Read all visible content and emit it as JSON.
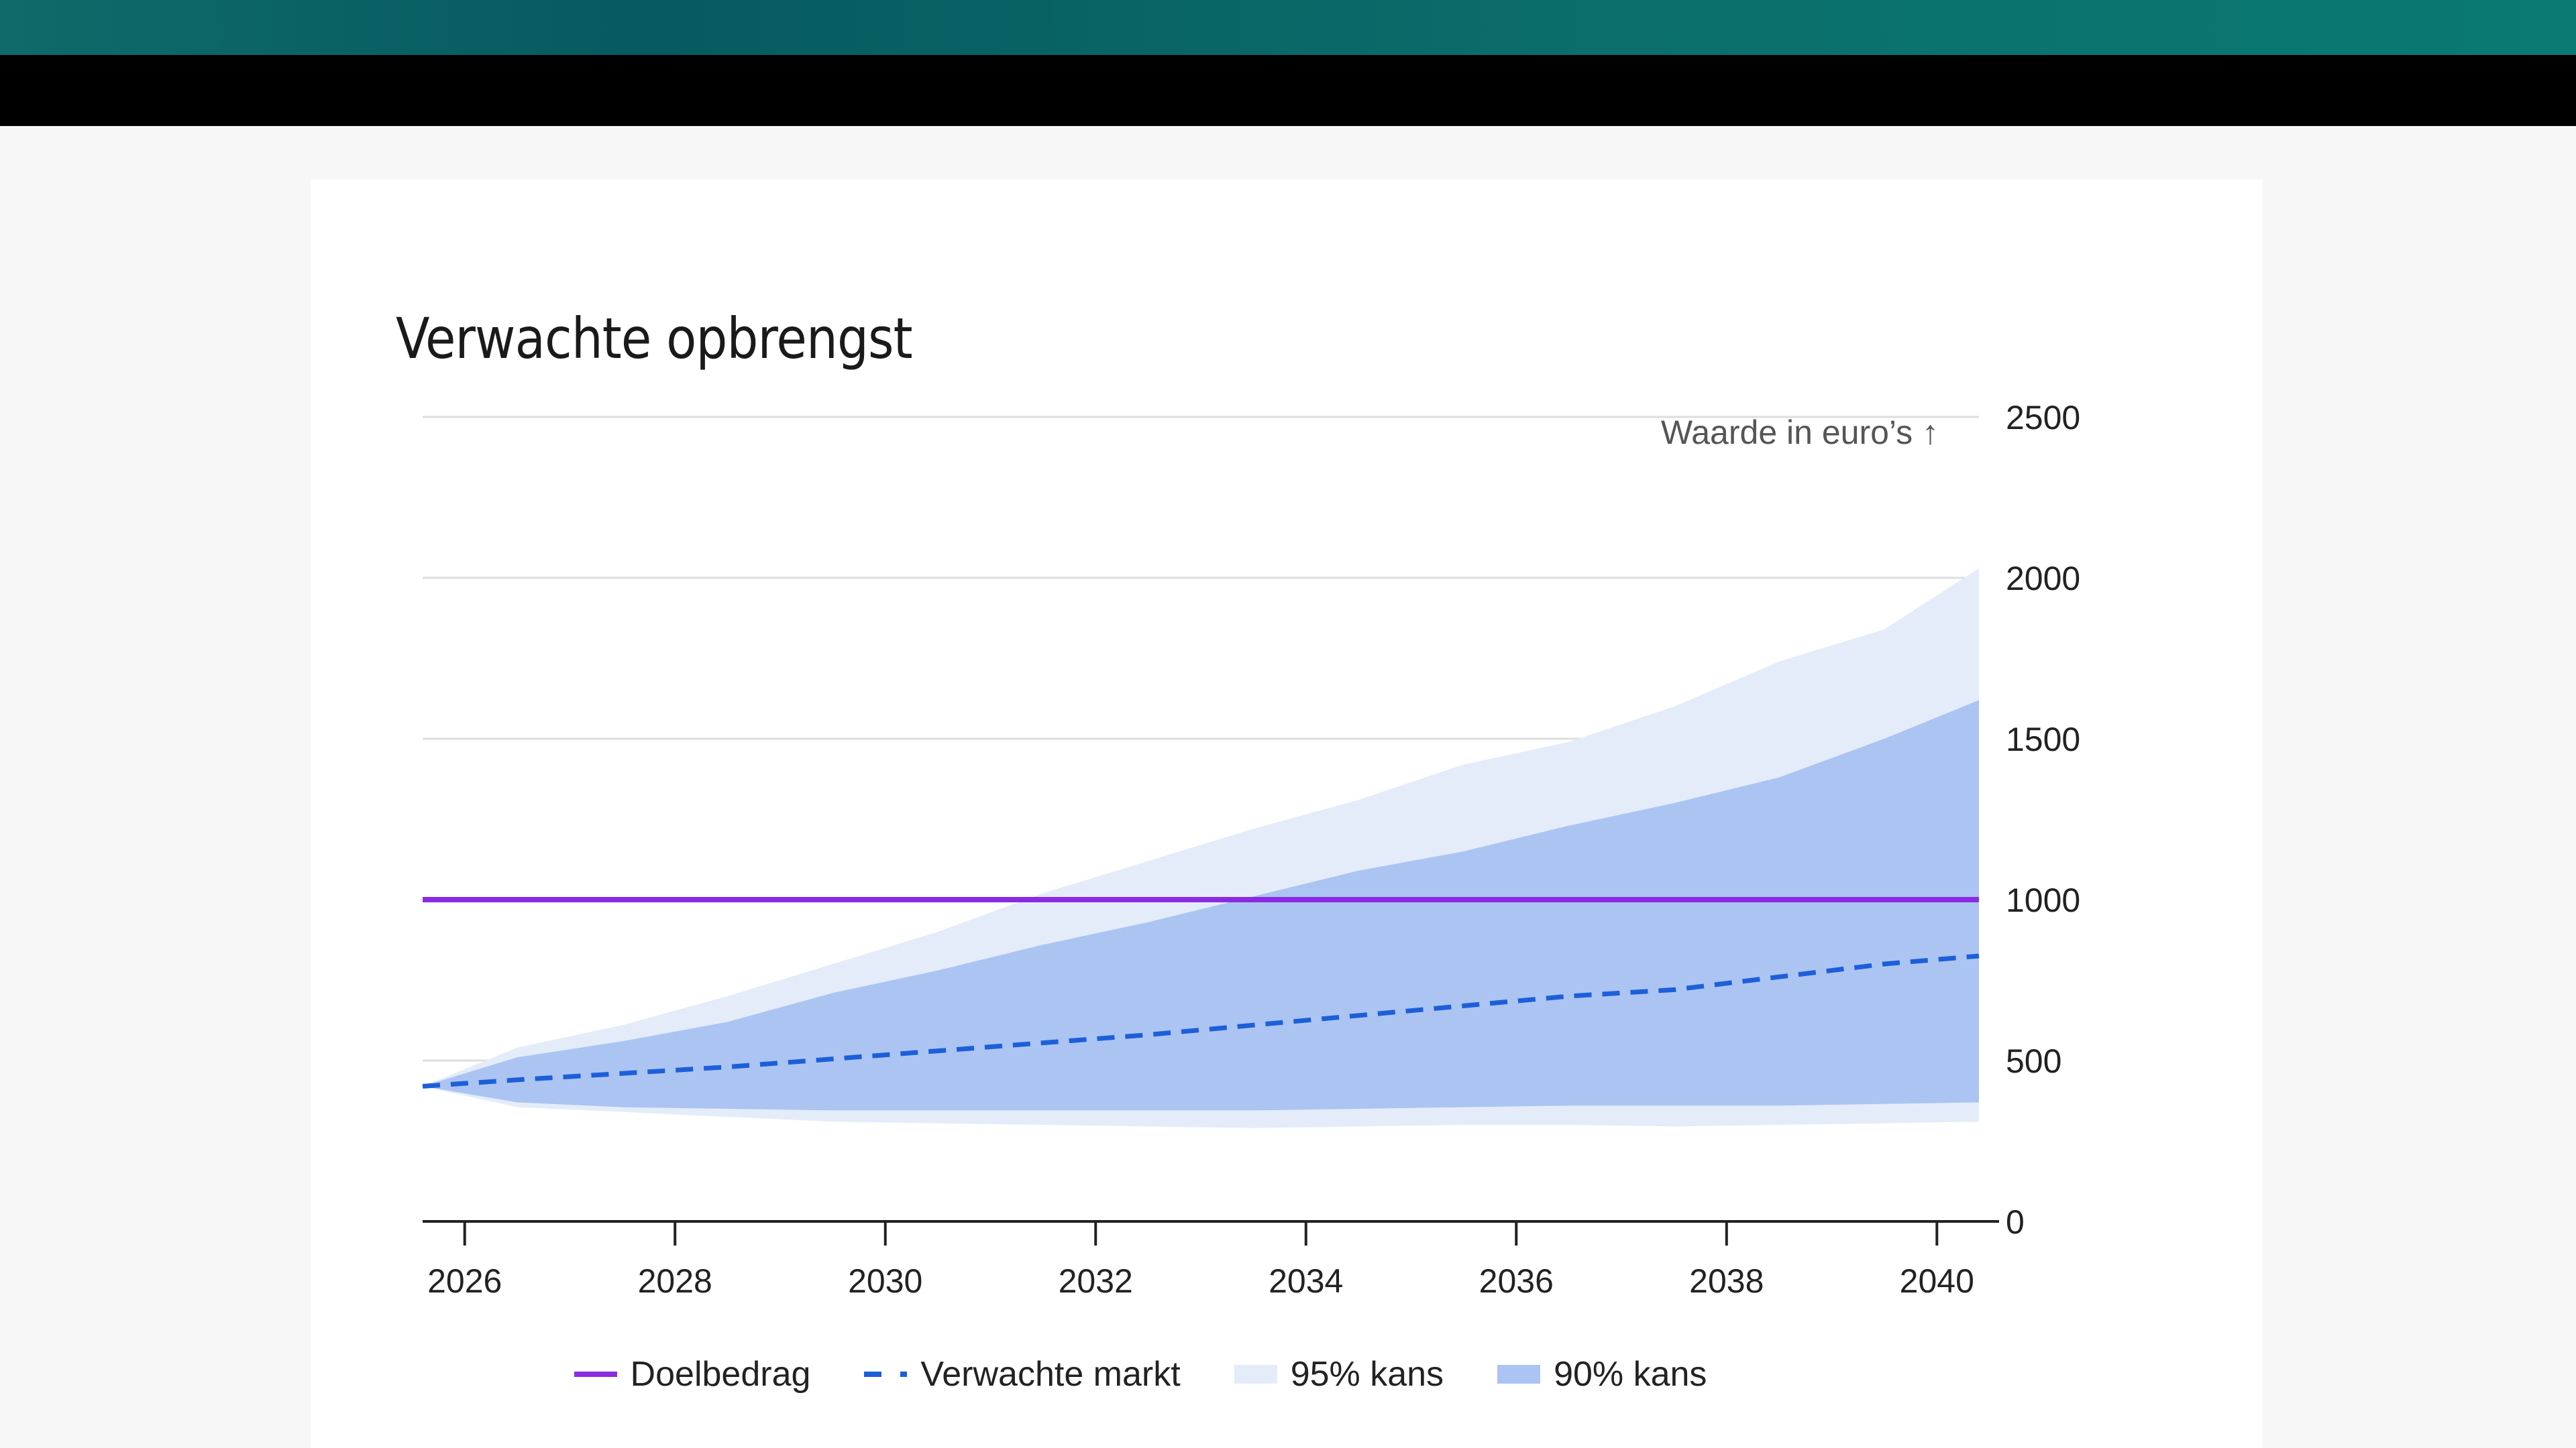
{
  "title": "Verwachte opbrengst",
  "chart_data": {
    "type": "area",
    "title": "Verwachte opbrengst",
    "ylabel": "Waarde in euro’s ↑",
    "ylabel_position": "top-right",
    "y_axis_side": "right",
    "ylim": [
      0,
      2500
    ],
    "yticks": [
      0,
      500,
      1000,
      1500,
      2000,
      2500
    ],
    "xlim": [
      2025.6,
      2040.4
    ],
    "xticks": [
      2026,
      2028,
      2030,
      2032,
      2034,
      2036,
      2038,
      2040
    ],
    "grid": true,
    "legend_position": "bottom",
    "x": [
      2025.6,
      2026.5,
      2027.5,
      2028.5,
      2029.5,
      2030.5,
      2031.5,
      2032.5,
      2033.5,
      2034.5,
      2035.5,
      2036.5,
      2037.5,
      2038.5,
      2039.5,
      2040.4
    ],
    "series": [
      {
        "name": "Doelbedrag",
        "style": "solid",
        "color": "#8a2be2",
        "values": [
          1000,
          1000,
          1000,
          1000,
          1000,
          1000,
          1000,
          1000,
          1000,
          1000,
          1000,
          1000,
          1000,
          1000,
          1000,
          1000
        ]
      },
      {
        "name": "Verwachte markt",
        "style": "dashed",
        "color": "#1c5fd8",
        "values": [
          420,
          440,
          460,
          480,
          505,
          530,
          555,
          580,
          610,
          640,
          670,
          700,
          720,
          760,
          800,
          825
        ]
      },
      {
        "name": "95% kans",
        "type": "band",
        "color": "#e4ecfa",
        "upper": [
          420,
          540,
          610,
          700,
          800,
          900,
          1020,
          1120,
          1220,
          1310,
          1420,
          1490,
          1600,
          1740,
          1840,
          2030
        ],
        "lower": [
          420,
          355,
          340,
          325,
          310,
          305,
          300,
          295,
          290,
          295,
          300,
          300,
          295,
          300,
          305,
          310
        ]
      },
      {
        "name": "90% kans",
        "type": "band",
        "color": "#abc4f2",
        "upper": [
          420,
          510,
          560,
          620,
          710,
          780,
          860,
          930,
          1010,
          1090,
          1150,
          1230,
          1300,
          1380,
          1500,
          1620
        ],
        "lower": [
          420,
          370,
          355,
          350,
          345,
          345,
          345,
          345,
          345,
          350,
          355,
          360,
          360,
          360,
          365,
          370
        ]
      }
    ]
  }
}
